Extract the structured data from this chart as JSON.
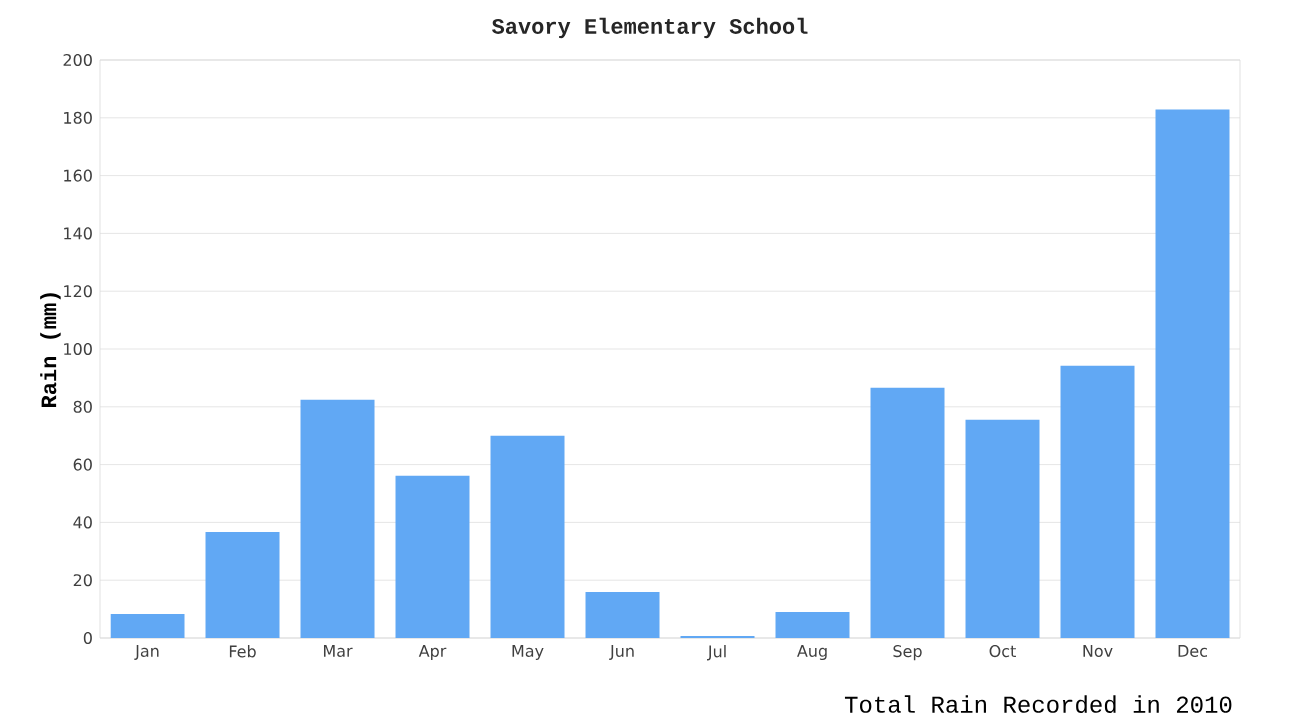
{
  "chart_data": {
    "type": "bar",
    "title": "Savory Elementary School",
    "xlabel": "Total Rain Recorded in 2010",
    "ylabel": "Rain (mm)",
    "categories": [
      "Jan",
      "Feb",
      "Mar",
      "Apr",
      "May",
      "Jun",
      "Jul",
      "Aug",
      "Sep",
      "Oct",
      "Nov",
      "Dec"
    ],
    "values": [
      8.3,
      36.7,
      82.4,
      56.1,
      70,
      15.9,
      0.7,
      9,
      86.6,
      75.5,
      94.2,
      182.9
    ],
    "color": "#61a8f4",
    "ylim": [
      0,
      200
    ],
    "yticks": [
      0,
      20,
      40,
      60,
      80,
      100,
      120,
      140,
      160,
      180,
      200
    ],
    "grid": "y"
  }
}
